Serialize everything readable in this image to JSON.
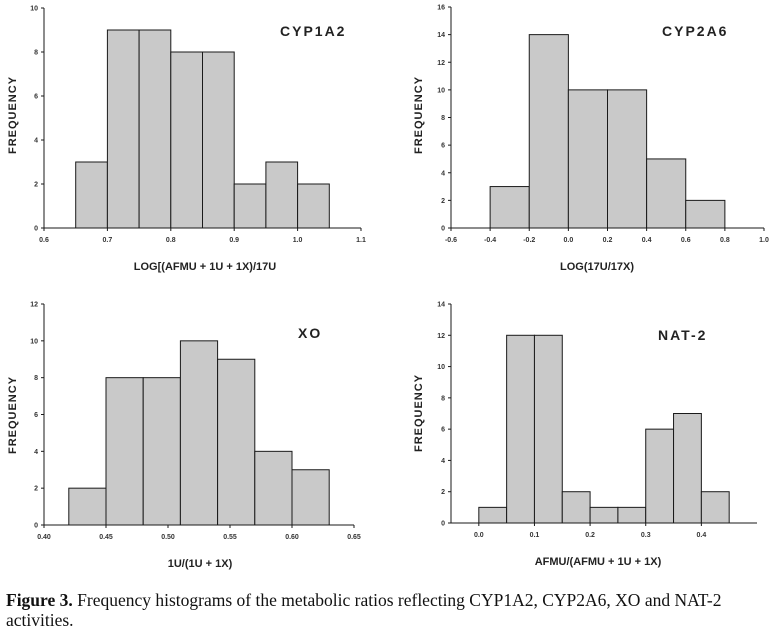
{
  "caption": {
    "label": "Figure 3.",
    "text": " Frequency histograms of the metabolic ratios reflecting CYP1A2, CYP2A6, XO and NAT-2 activities."
  },
  "chart_data": [
    {
      "type": "bar",
      "title": "CYP1A2",
      "xlabel": "LOG[(AFMU + 1U + 1X)/17U",
      "ylabel": "FREQUENCY",
      "xlim": [
        0.6,
        1.1
      ],
      "ylim": [
        0,
        10
      ],
      "x_ticks": [
        "0.6",
        "0.7",
        "0.8",
        "0.9",
        "1.0",
        "1.1"
      ],
      "y_ticks": [
        "0",
        "2",
        "4",
        "6",
        "8",
        "10"
      ],
      "bins": [
        [
          0.65,
          0.7
        ],
        [
          0.7,
          0.75
        ],
        [
          0.75,
          0.8
        ],
        [
          0.8,
          0.85
        ],
        [
          0.85,
          0.9
        ],
        [
          0.9,
          0.95
        ],
        [
          0.95,
          1.0
        ],
        [
          1.0,
          1.05
        ]
      ],
      "values": [
        3,
        9,
        9,
        8,
        8,
        2,
        3,
        2
      ],
      "grid": false
    },
    {
      "type": "bar",
      "title": "CYP2A6",
      "xlabel": "LOG(17U/17X)",
      "ylabel": "FREQUENCY",
      "xlim": [
        -0.6,
        1.0
      ],
      "ylim": [
        0,
        16
      ],
      "x_ticks": [
        "-0.6",
        "-0.4",
        "-0.2",
        "0.0",
        "0.2",
        "0.4",
        "0.6",
        "0.8",
        "1.0"
      ],
      "y_ticks": [
        "0",
        "2",
        "4",
        "6",
        "8",
        "10",
        "12",
        "14",
        "16"
      ],
      "bins": [
        [
          -0.4,
          -0.2
        ],
        [
          -0.2,
          0.0
        ],
        [
          0.0,
          0.2
        ],
        [
          0.2,
          0.4
        ],
        [
          0.4,
          0.6
        ],
        [
          0.6,
          0.8
        ]
      ],
      "values": [
        3,
        14,
        10,
        10,
        5,
        2
      ],
      "grid": false
    },
    {
      "type": "bar",
      "title": "XO",
      "xlabel": "1U/(1U + 1X)",
      "ylabel": "FREQUENCY",
      "xlim": [
        0.4,
        0.65
      ],
      "ylim": [
        0,
        12
      ],
      "x_ticks": [
        "0.40",
        "0.45",
        "0.50",
        "0.55",
        "0.60",
        "0.65"
      ],
      "y_ticks": [
        "0",
        "2",
        "4",
        "6",
        "8",
        "10",
        "12"
      ],
      "bins": [
        [
          0.42,
          0.45
        ],
        [
          0.45,
          0.48
        ],
        [
          0.48,
          0.51
        ],
        [
          0.51,
          0.54
        ],
        [
          0.54,
          0.57
        ],
        [
          0.57,
          0.6
        ],
        [
          0.6,
          0.63
        ]
      ],
      "values": [
        2,
        8,
        8,
        10,
        9,
        4,
        3
      ],
      "grid": false
    },
    {
      "type": "bar",
      "title": "NAT-2",
      "xlabel": "AFMU/(AFMU + 1U + 1X)",
      "ylabel": "FREQUENCY",
      "xlim": [
        -0.05,
        0.5
      ],
      "ylim": [
        0,
        14
      ],
      "x_ticks": [
        "0.0",
        "0.1",
        "0.2",
        "0.3",
        "0.4"
      ],
      "x_tick_values": [
        0.0,
        0.1,
        0.2,
        0.3,
        0.4
      ],
      "y_ticks": [
        "0",
        "2",
        "4",
        "6",
        "8",
        "10",
        "12",
        "14"
      ],
      "bins": [
        [
          0.0,
          0.05
        ],
        [
          0.05,
          0.1
        ],
        [
          0.1,
          0.15
        ],
        [
          0.15,
          0.2
        ],
        [
          0.2,
          0.25
        ],
        [
          0.25,
          0.3
        ],
        [
          0.3,
          0.35
        ],
        [
          0.35,
          0.4
        ],
        [
          0.4,
          0.45
        ]
      ],
      "values": [
        1,
        12,
        12,
        2,
        1,
        1,
        6,
        7,
        2
      ],
      "grid": false
    }
  ]
}
